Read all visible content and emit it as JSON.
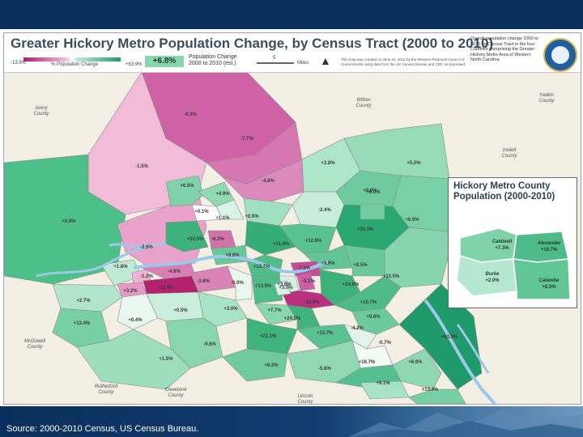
{
  "header": {
    "title": "Greater Hickory Metro Population Change, by Census Tract (2000 to 2010)",
    "legend_min": "-13.9%",
    "legend_mid": "% Population Change",
    "legend_max": "+63.9%",
    "overall_value": "+6.8%",
    "pop_change_label": "Population Change",
    "pop_change_range": "2000 to 2010 (est.)",
    "scale_label": "5",
    "scale_unit": "Miles",
    "note": "This map was created on June 22, 2011 by the Western Piedmont Council of Governments using data from the US Census Bureau and CDC Incorporated.",
    "right_note": "Overall population change 2000 to 2010 by Census Tract in the four Counties comprising the Greater Hickory Metro Area of Western North Carolina."
  },
  "counties": [
    {
      "name": "Avery County"
    },
    {
      "name": "Wilkes County"
    },
    {
      "name": "Yadkin County"
    },
    {
      "name": "Iredell County"
    },
    {
      "name": "McDowell County"
    },
    {
      "name": "Rutherford County"
    },
    {
      "name": "Cleveland County"
    },
    {
      "name": "Lincoln County"
    }
  ],
  "tracts": [
    {
      "label": "-6.3%",
      "color": "#cf62a6"
    },
    {
      "label": "-7.7%",
      "color": "#d677b1"
    },
    {
      "label": "-1.5%",
      "color": "#f2bcd9"
    },
    {
      "label": "+0.8%",
      "color": "#4dbf88"
    },
    {
      "label": "-2.6%",
      "color": "#e9a3cb"
    },
    {
      "label": "+6.5%",
      "color": "#7fd2aa"
    },
    {
      "label": "+4.9%",
      "color": "#8fd9b3"
    },
    {
      "label": "-4.8%",
      "color": "#dc8abd"
    },
    {
      "label": "+2.8%",
      "color": "#aee6c9"
    },
    {
      "label": "+5.0%",
      "color": "#97dbb8"
    },
    {
      "label": "+8.0%",
      "color": "#6fcb9f"
    },
    {
      "label": "-2.4%",
      "color": "#c8eedb"
    },
    {
      "label": "+6.5%",
      "color": "#7ad0a6"
    },
    {
      "label": "+33.3%",
      "color": "#2aa871"
    },
    {
      "label": "+0.1%",
      "color": "#ffffff"
    },
    {
      "label": "+1.1%",
      "color": "#d9f3e6"
    },
    {
      "label": "+0.9%",
      "color": "#a0e0c0"
    },
    {
      "label": "+22.5%",
      "color": "#3db37b"
    },
    {
      "label": "-6.3%",
      "color": "#d073aa"
    },
    {
      "label": "+31.6%",
      "color": "#34ad76"
    },
    {
      "label": "+12.8%",
      "color": "#58c291"
    },
    {
      "label": "+8.8%",
      "color": "#68c899"
    },
    {
      "label": "+13.7%",
      "color": "#50bd8a"
    },
    {
      "label": "+9.9%",
      "color": "#62c595"
    },
    {
      "label": "+8.5%",
      "color": "#6ac99b"
    },
    {
      "label": "+12.5%",
      "color": "#86d5ae"
    },
    {
      "label": "+1.8%",
      "color": "#bfead4"
    },
    {
      "label": "-4.6%",
      "color": "#d87fb5"
    },
    {
      "label": "-1.2%",
      "color": "#f0b3d4"
    },
    {
      "label": "-13.5%",
      "color": "#b2226e"
    },
    {
      "label": "-3.8%",
      "color": "#d983b7"
    },
    {
      "label": "-0.0%",
      "color": "#eaf7f0"
    },
    {
      "label": "+13.9%",
      "color": "#4fbc89"
    },
    {
      "label": "+3.0%",
      "color": "#d5f2e3"
    },
    {
      "label": "+3.2%",
      "color": "#e59ac6"
    },
    {
      "label": "-7.3%",
      "color": "#c74c97"
    },
    {
      "label": "-10.8%",
      "color": "#b93080"
    },
    {
      "label": "+24.9%",
      "color": "#3cb27a"
    },
    {
      "label": "+10.7%",
      "color": "#4fbb88"
    },
    {
      "label": "+2.7%",
      "color": "#b2e6cb"
    },
    {
      "label": "+13.4%",
      "color": "#79cfa5"
    },
    {
      "label": "+0.4%",
      "color": "#e9f7f0"
    },
    {
      "label": "+0.5%",
      "color": "#c9eedb"
    },
    {
      "label": "+3.0%",
      "color": "#a7e3c4"
    },
    {
      "label": "+7.7%",
      "color": "#8ad6af"
    },
    {
      "label": "+24.0%",
      "color": "#41b47d"
    },
    {
      "label": "+9.8%",
      "color": "#6dca9d"
    },
    {
      "label": "+21.1%",
      "color": "#3fb37c"
    },
    {
      "label": "+13.7%",
      "color": "#5ac292"
    },
    {
      "label": "-4.2%",
      "color": "#e3f4ea"
    },
    {
      "label": "+63.9%",
      "color": "#1f9a6a"
    },
    {
      "label": "-9.8%",
      "color": "#88d5ae"
    },
    {
      "label": "+1.5%",
      "color": "#9ddfbd"
    },
    {
      "label": "-0.7%",
      "color": "#f3fbf7"
    },
    {
      "label": "+9.2%",
      "color": "#6fcb9f"
    },
    {
      "label": "-5.8%",
      "color": "#92d8b5"
    },
    {
      "label": "+16.7%",
      "color": "#55c08f"
    },
    {
      "label": "+6.9%",
      "color": "#8ed7b2"
    },
    {
      "label": "+9.1%",
      "color": "#a9e3c6"
    },
    {
      "label": "+13.4%",
      "color": "#79cfa5"
    },
    {
      "label": "+3.6%",
      "color": "#d9f3e6"
    },
    {
      "label": "-5.1%",
      "color": "#cd5ea3"
    },
    {
      "label": "+8.0%",
      "color": "#72cca1"
    }
  ],
  "inset": {
    "title_line1": "Hickory Metro County",
    "title_line2": "Population (2000-2010)",
    "counties": [
      {
        "name": "Caldwell",
        "value": "+7.3%",
        "color": "#7fd2aa"
      },
      {
        "name": "Alexander",
        "value": "+10.7%",
        "color": "#4fbb88"
      },
      {
        "name": "Burke",
        "value": "+2.0%",
        "color": "#b6e8cf"
      },
      {
        "name": "Catawba",
        "value": "+8.5%",
        "color": "#62c595"
      }
    ]
  },
  "footer": {
    "source": "Source: 2000-2010 Census, US Census Bureau."
  },
  "colors": {
    "header_bar": "#0a2f5c",
    "lake": "#9cc9e8",
    "outside": "#f3efe4"
  }
}
